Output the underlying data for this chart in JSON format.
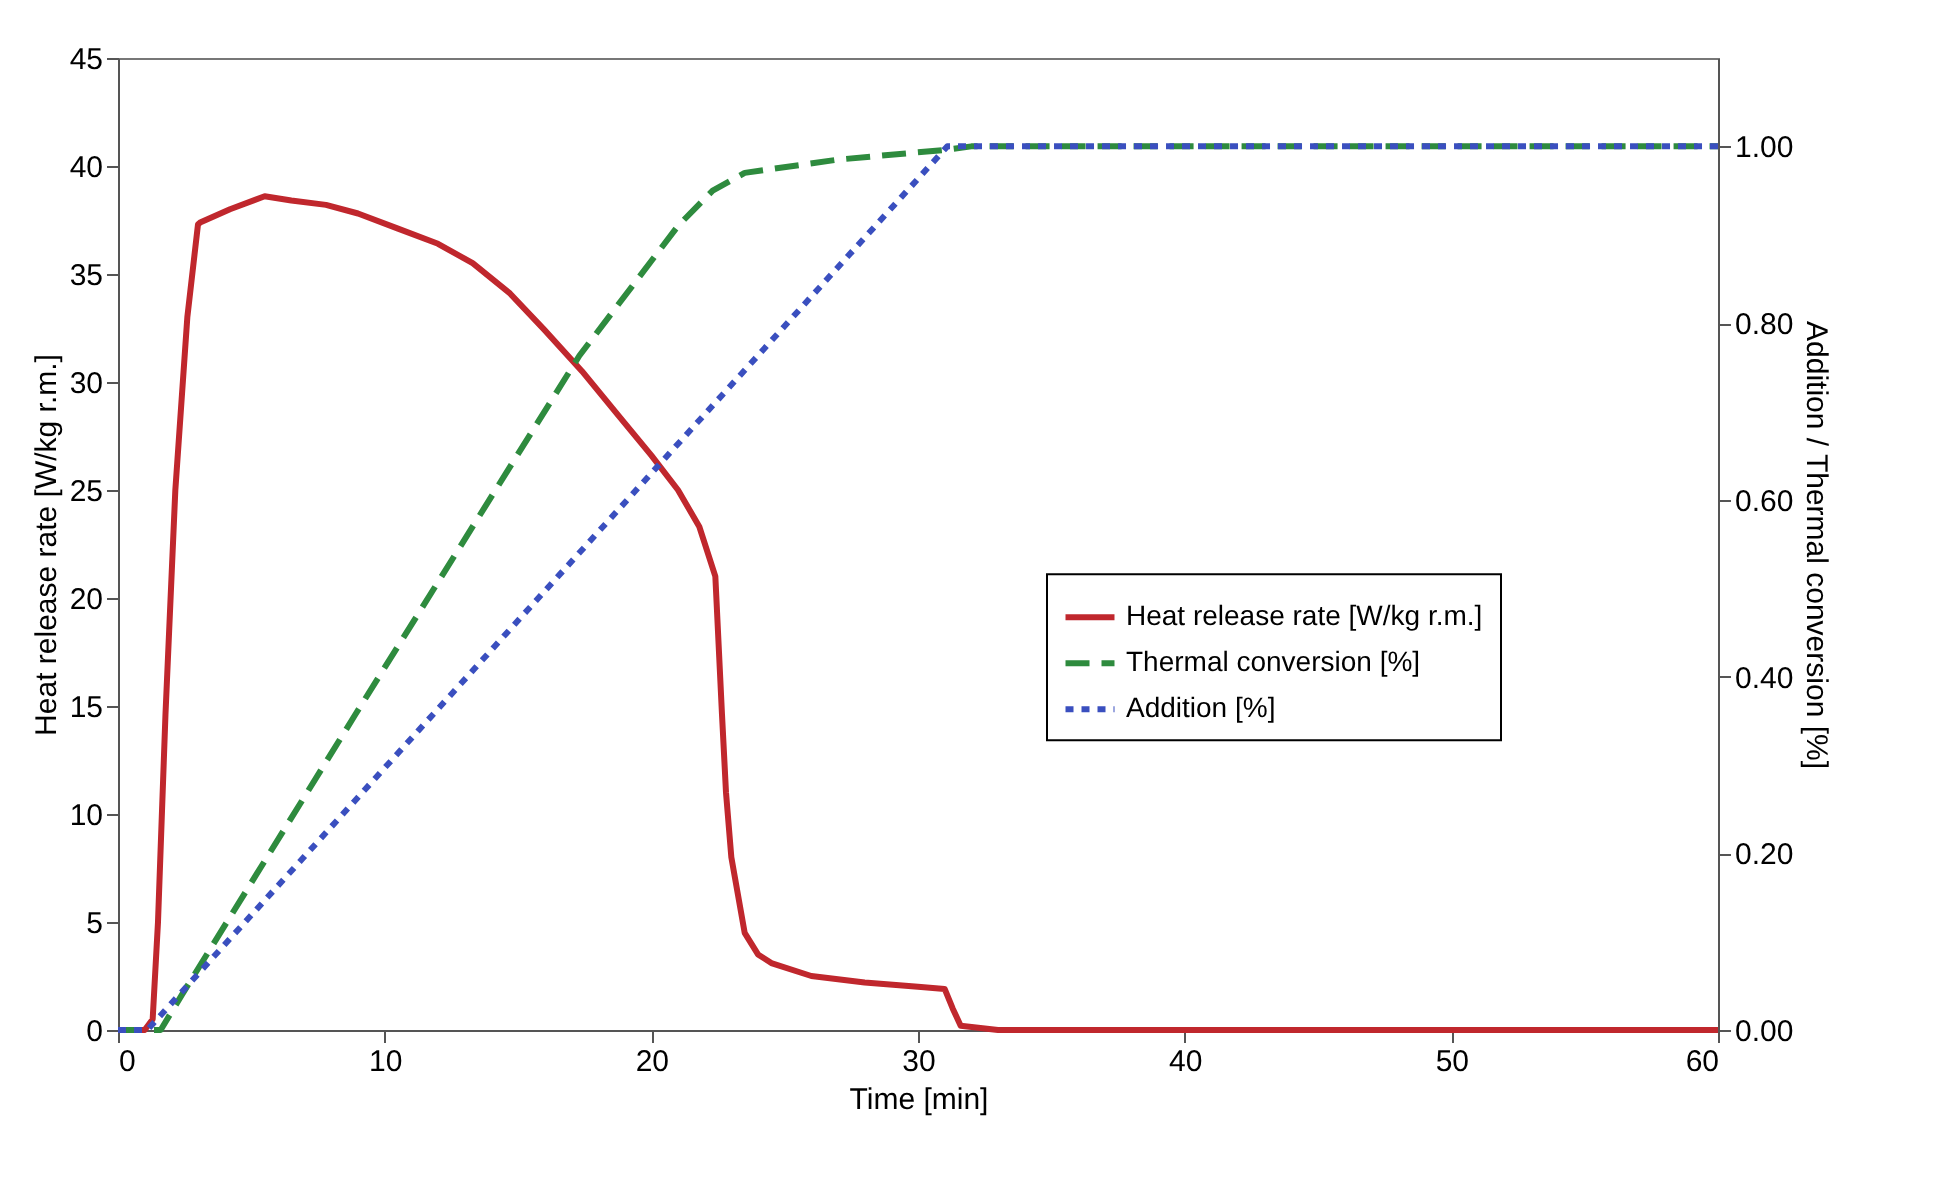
{
  "chart_data": {
    "type": "line",
    "xlabel": "Time [min]",
    "ylabel": "Heat release rate [W/kg r.m.]",
    "y2label": "Addition / Thermal conversion [%]",
    "xlim": [
      0,
      60
    ],
    "xticks": [
      0,
      10,
      20,
      30,
      40,
      50,
      60
    ],
    "ylim": [
      0,
      45
    ],
    "yticks": [
      0,
      5,
      10,
      15,
      20,
      25,
      30,
      35,
      40,
      45
    ],
    "y2lim": [
      0,
      1.1
    ],
    "y2ticks": [
      {
        "value": 0,
        "label": "0.00"
      },
      {
        "value": 0.2,
        "label": "0.20"
      },
      {
        "value": 0.4,
        "label": "0.40"
      },
      {
        "value": 0.6,
        "label": "0.60"
      },
      {
        "value": 0.8,
        "label": "0.80"
      },
      {
        "value": 1,
        "label": "1.00"
      }
    ],
    "grid": false,
    "legend": "right",
    "marker": "none",
    "series": [
      {
        "name": "Heat release rate [W/kg r.m.]",
        "color": "#c0272d",
        "line_style": "solid",
        "x": [
          0,
          1,
          1.3,
          1.5,
          1.78,
          2.15,
          2.6,
          3.0,
          3.1,
          4.2,
          5.5,
          6.5,
          7.8,
          9,
          10.5,
          12,
          13.3,
          14.7,
          16,
          17.4,
          18.8,
          20,
          21,
          21.8,
          22.4,
          22.65,
          22.8,
          23,
          23.5,
          24,
          24.5,
          26,
          28,
          30,
          31,
          31.3,
          31.6,
          33,
          40,
          50,
          60
        ],
        "values": [
          0,
          0,
          0.5,
          5,
          14.6,
          25,
          33,
          37.3,
          37.4,
          38,
          38.6,
          38.4,
          38.2,
          37.8,
          37.1,
          36.4,
          35.5,
          34.1,
          32.4,
          30.5,
          28.4,
          26.6,
          25,
          23.3,
          21,
          14.6,
          11,
          8,
          4.5,
          3.5,
          3.1,
          2.5,
          2.2,
          2,
          1.9,
          1,
          0.2,
          0,
          0,
          0,
          0
        ]
      },
      {
        "name": "Thermal conversion [%]",
        "color": "#2e8b3e",
        "line_style": "dashed",
        "axis": "y2",
        "x": [
          0,
          1.6,
          2.4,
          8.9,
          17.3,
          21,
          22.3,
          23.5,
          27,
          31,
          32,
          40,
          50,
          60
        ],
        "values": [
          0,
          0,
          0.04,
          0.357,
          0.763,
          0.91,
          0.95,
          0.97,
          0.985,
          0.996,
          1,
          1,
          1,
          1
        ]
      },
      {
        "name": "Addition [%]",
        "color": "#3a4fbf",
        "line_style": "dotted",
        "axis": "y2",
        "x": [
          0,
          1.1,
          31.1,
          40,
          50,
          60
        ],
        "values": [
          0,
          0,
          1,
          1,
          1,
          1
        ]
      }
    ]
  }
}
